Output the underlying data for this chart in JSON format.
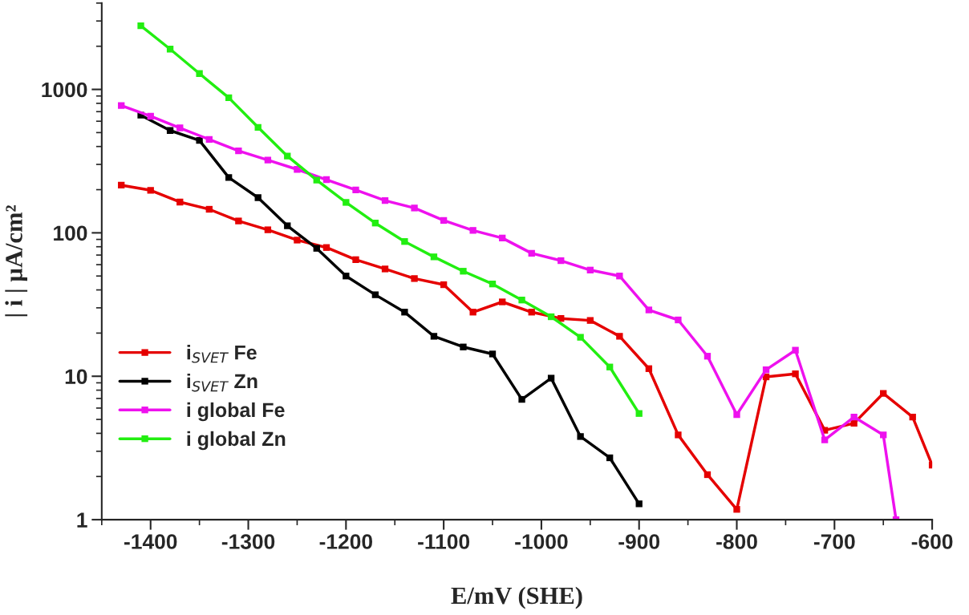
{
  "chart_data": {
    "type": "line",
    "xlabel": "E/mV (SHE)",
    "ylabel": "| i | µA/cm²",
    "log": "y",
    "marker": "square",
    "line_style": "solid",
    "legend": "bottom left",
    "grid": false,
    "xlim": [
      -1450,
      -600
    ],
    "ylim": [
      1,
      4000
    ],
    "xticks": [
      {
        "value": -1450,
        "label": null
      },
      -1400,
      {
        "value": -1350,
        "label": null
      },
      -1300,
      {
        "value": -1250,
        "label": null
      },
      -1200,
      {
        "value": -1150,
        "label": null
      },
      -1100,
      {
        "value": -1050,
        "label": null
      },
      -1000,
      {
        "value": -950,
        "label": null
      },
      -900,
      {
        "value": -850,
        "label": null
      },
      -800,
      {
        "value": -750,
        "label": null
      },
      -700,
      {
        "value": -650,
        "label": null
      },
      -600
    ],
    "yticks": [
      1,
      {
        "value": 2,
        "label": null
      },
      {
        "value": 3,
        "label": null
      },
      {
        "value": 4,
        "label": null
      },
      {
        "value": 5,
        "label": null
      },
      {
        "value": 6,
        "label": null
      },
      {
        "value": 7,
        "label": null
      },
      {
        "value": 8,
        "label": null
      },
      {
        "value": 9,
        "label": null
      },
      10,
      {
        "value": 20,
        "label": null
      },
      {
        "value": 30,
        "label": null
      },
      {
        "value": 40,
        "label": null
      },
      {
        "value": 50,
        "label": null
      },
      {
        "value": 60,
        "label": null
      },
      {
        "value": 70,
        "label": null
      },
      {
        "value": 80,
        "label": null
      },
      {
        "value": 90,
        "label": null
      },
      100,
      {
        "value": 200,
        "label": null
      },
      {
        "value": 300,
        "label": null
      },
      {
        "value": 400,
        "label": null
      },
      {
        "value": 500,
        "label": null
      },
      {
        "value": 600,
        "label": null
      },
      {
        "value": 700,
        "label": null
      },
      {
        "value": 800,
        "label": null
      },
      {
        "value": 900,
        "label": null
      },
      1000,
      {
        "value": 2000,
        "label": null
      },
      {
        "value": 3000,
        "label": null
      },
      {
        "value": 4000,
        "label": null
      }
    ],
    "series": [
      {
        "name": "i$_{SVET}$ Fe",
        "color": "#e50000",
        "x": [
          -1430,
          -1400,
          -1370,
          -1340,
          -1310,
          -1280,
          -1250,
          -1220,
          -1190,
          -1160,
          -1130,
          -1100,
          -1070,
          -1040,
          -1010,
          -980,
          -950,
          -920,
          -890,
          -860,
          -830,
          -800,
          -770,
          -740,
          -710,
          -680,
          -650,
          -620,
          -600
        ],
        "values": [
          215,
          198,
          164,
          146,
          121,
          105,
          89,
          79,
          65,
          56,
          48,
          43.5,
          28,
          33,
          28,
          25.3,
          24.5,
          19,
          11.3,
          3.9,
          2.06,
          1.18,
          9.9,
          10.4,
          4.2,
          4.7,
          7.6,
          5.2,
          2.4
        ]
      },
      {
        "name": "i$_{SVET}$ Zn",
        "color": "#000000",
        "x": [
          -1410,
          -1380,
          -1350,
          -1320,
          -1290,
          -1260,
          -1230,
          -1200,
          -1170,
          -1140,
          -1110,
          -1080,
          -1050,
          -1020,
          -990,
          -960,
          -930,
          -900
        ],
        "values": [
          661,
          517,
          441,
          243,
          176,
          112,
          78,
          50,
          37,
          28,
          19,
          16,
          14.3,
          6.9,
          9.7,
          3.8,
          2.7,
          1.29
        ]
      },
      {
        "name": "i global Fe",
        "color": "#ee11ee",
        "x": [
          -1430,
          -1400,
          -1370,
          -1340,
          -1310,
          -1280,
          -1250,
          -1220,
          -1190,
          -1160,
          -1130,
          -1100,
          -1070,
          -1040,
          -1010,
          -980,
          -950,
          -920,
          -890,
          -860,
          -830,
          -800,
          -770,
          -740,
          -710,
          -680,
          -650,
          -637
        ],
        "values": [
          772,
          650,
          539,
          448,
          373,
          322,
          277,
          235,
          199,
          168,
          149,
          122,
          104,
          92,
          72,
          64,
          55,
          50,
          29,
          24.7,
          13.8,
          5.4,
          11.1,
          15.2,
          3.6,
          5.2,
          3.9,
          1
        ]
      },
      {
        "name": "i global Zn",
        "color": "#22ee11",
        "x": [
          -1410,
          -1380,
          -1350,
          -1320,
          -1290,
          -1260,
          -1230,
          -1200,
          -1170,
          -1140,
          -1110,
          -1080,
          -1050,
          -1020,
          -990,
          -960,
          -930,
          -900
        ],
        "values": [
          2780,
          1910,
          1290,
          875,
          544,
          343,
          233,
          163,
          117,
          87,
          68,
          54,
          44,
          34,
          26,
          18.7,
          11.6,
          5.5
        ]
      }
    ]
  }
}
